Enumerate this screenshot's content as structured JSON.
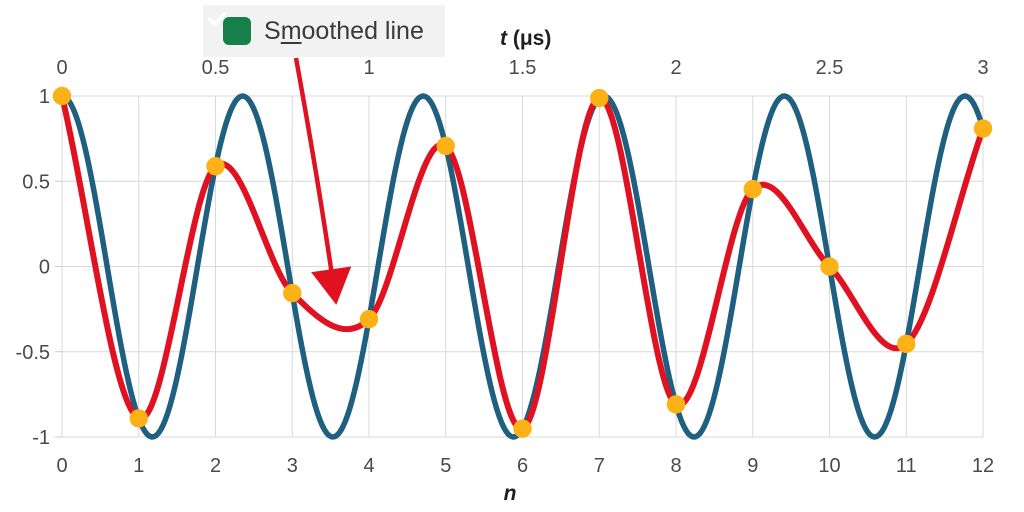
{
  "checkbox": {
    "label": "Smoothed line",
    "label_parts": [
      "S",
      "m",
      "oothed line"
    ],
    "checked": true,
    "box_color": "#17804a",
    "panel_bg": "#f2f2f2"
  },
  "annotation_arrow": {
    "color": "#e01222",
    "points_to": "smoothed red curve trough between n=3 and n=4"
  },
  "chart_data": {
    "type": "line",
    "title": "",
    "background": "#ffffff",
    "grid": true,
    "grid_color": "#d9d9d9",
    "x_bottom": {
      "label": "n",
      "range": [
        0,
        12
      ],
      "ticks": [
        0,
        1,
        2,
        3,
        4,
        5,
        6,
        7,
        8,
        9,
        10,
        11,
        12
      ],
      "tick_labels": [
        "0",
        "1",
        "2",
        "3",
        "4",
        "5",
        "6",
        "7",
        "8",
        "9",
        "10",
        "11",
        "12"
      ]
    },
    "x_top": {
      "label_var": "t",
      "label_unit": " (μs)",
      "label": "t (μs)",
      "range": [
        0,
        3
      ],
      "ticks_t": [
        0,
        0.5,
        1,
        1.5,
        2,
        2.5,
        3
      ],
      "tick_labels": [
        "0",
        "0.5",
        "1",
        "1.5",
        "2",
        "2.5",
        "3"
      ],
      "positions_n": [
        0,
        2,
        4,
        6,
        8,
        10,
        12
      ]
    },
    "y": {
      "label": "",
      "range": [
        -1,
        1
      ],
      "ticks": [
        1,
        0.5,
        0,
        -0.5,
        -1
      ],
      "tick_labels": [
        "1",
        "0.5",
        "0",
        "-0.5",
        "-1"
      ]
    },
    "series": [
      {
        "name": "original-signal",
        "type": "continuous_cosine",
        "color": "#1f5f80",
        "stroke_width": 5.5,
        "frequency_cycles_per_sample": 0.425,
        "formula": "cos(2*pi*0.425*n)"
      },
      {
        "name": "smoothed-line",
        "type": "spline_through_samples",
        "color": "#e01222",
        "stroke_width": 6
      },
      {
        "name": "samples",
        "type": "points",
        "color": "#fcb216",
        "radius": 9.2,
        "x": [
          0,
          1,
          2,
          3,
          4,
          5,
          6,
          7,
          8,
          9,
          10,
          11,
          12
        ],
        "y": [
          1,
          -0.891,
          0.588,
          -0.156,
          -0.309,
          0.707,
          -0.951,
          0.988,
          -0.809,
          0.454,
          0.0,
          -0.454,
          0.809
        ]
      }
    ]
  }
}
